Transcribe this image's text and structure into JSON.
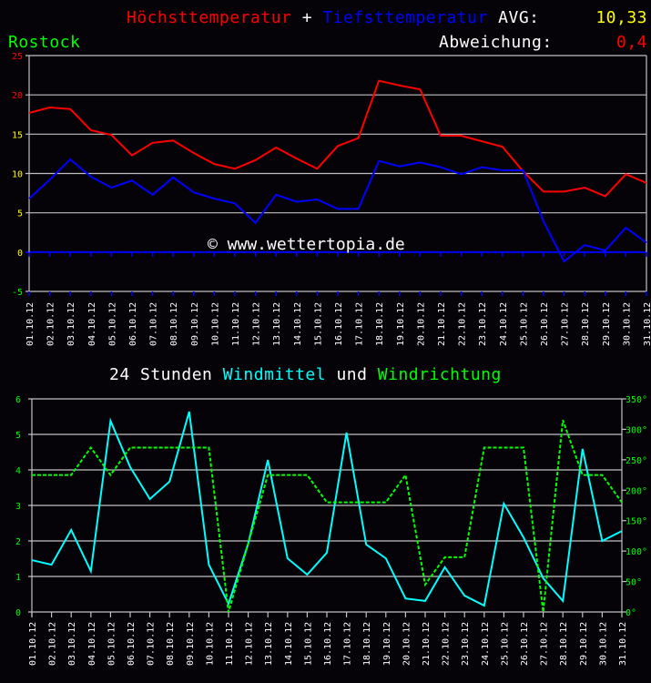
{
  "header": {
    "title_high": "Höchsttemperatur",
    "title_plus": "+",
    "title_low": "Tiefsttemperatur",
    "avg_label": "AVG:",
    "avg_value": "10,33",
    "location": "Rostock",
    "deviation_label": "Abweichung:",
    "deviation_value": "0,4"
  },
  "watermark": "© www.wettertopia.de",
  "wind_title": {
    "prefix": "24 Stunden",
    "series1": "Windmittel",
    "joiner": "und",
    "series2": "Windrichtung"
  },
  "colors": {
    "background": "#050308",
    "grid": "#c0c0c0",
    "high": "#ff0000",
    "low": "#0000ff",
    "wind_speed": "#00ffff",
    "wind_dir": "#00ff00",
    "axis_labels": "#ffffff"
  },
  "chart_data": [
    {
      "type": "line",
      "title": "Höchsttemperatur + Tiefsttemperatur",
      "subtitle": "Rostock",
      "xlabel": "",
      "ylabel": "",
      "ylim": [
        -5,
        25
      ],
      "yticks": [
        25,
        20,
        15,
        10,
        5,
        0,
        -5
      ],
      "ytick_colors": [
        "#ff0000",
        "#ff0000",
        "#ffff00",
        "#ffff00",
        "#ffff00",
        "#ffff00",
        "#00ff00"
      ],
      "grid": true,
      "x": [
        "01.10.12",
        "02.10.12",
        "03.10.12",
        "04.10.12",
        "05.10.12",
        "06.10.12",
        "07.10.12",
        "08.10.12",
        "09.10.12",
        "10.10.12",
        "11.10.12",
        "12.10.12",
        "13.10.12",
        "14.10.12",
        "15.10.12",
        "16.10.12",
        "17.10.12",
        "18.10.12",
        "19.10.12",
        "20.10.12",
        "21.10.12",
        "22.10.12",
        "23.10.12",
        "24.10.12",
        "25.10.12",
        "26.10.12",
        "27.10.12",
        "28.10.12",
        "29.10.12",
        "30.10.12",
        "31.10.12"
      ],
      "series": [
        {
          "name": "Höchsttemperatur",
          "color": "#ff0000",
          "values": [
            17.7,
            18.4,
            18.2,
            15.5,
            14.9,
            12.3,
            13.9,
            14.2,
            12.6,
            11.2,
            10.6,
            11.7,
            13.3,
            11.9,
            10.6,
            13.5,
            14.5,
            21.8,
            21.2,
            20.7,
            14.8,
            14.8,
            14.1,
            13.4,
            10.3,
            7.7,
            7.7,
            8.2,
            7.1,
            9.9,
            8.8
          ]
        },
        {
          "name": "Tiefsttemperatur",
          "color": "#0000ff",
          "values": [
            6.8,
            9.2,
            11.8,
            9.6,
            8.2,
            9.1,
            7.3,
            9.5,
            7.6,
            6.8,
            6.2,
            3.7,
            7.3,
            6.4,
            6.7,
            5.5,
            5.5,
            11.6,
            10.9,
            11.4,
            10.8,
            9.9,
            10.8,
            10.4,
            10.4,
            3.9,
            -1.2,
            0.9,
            0.2,
            3.1,
            1.2
          ]
        }
      ],
      "annotations": [
        "AVG: 10,33",
        "Abweichung: 0,4",
        "© www.wettertopia.de"
      ]
    },
    {
      "type": "line",
      "title": "24 Stunden Windmittel und Windrichtung",
      "xlabel": "",
      "ylabel": "",
      "ylim": [
        0,
        6
      ],
      "yticks": [
        6,
        5,
        4,
        3,
        2,
        1,
        0
      ],
      "y2lim": [
        0,
        350
      ],
      "y2ticks": [
        "350°",
        "300°",
        "250°",
        "200°",
        "150°",
        "100°",
        "50°",
        "0°"
      ],
      "grid": true,
      "x": [
        "01.10.12",
        "02.10.12",
        "03.10.12",
        "04.10.12",
        "05.10.12",
        "06.10.12",
        "07.10.12",
        "08.10.12",
        "09.10.12",
        "10.10.12",
        "11.10.12",
        "12.10.12",
        "13.10.12",
        "14.10.12",
        "15.10.12",
        "16.10.12",
        "17.10.12",
        "18.10.12",
        "19.10.12",
        "20.10.12",
        "21.10.12",
        "22.10.12",
        "23.10.12",
        "24.10.12",
        "25.10.12",
        "26.10.12",
        "27.10.12",
        "28.10.12",
        "29.10.12",
        "30.10.12",
        "31.10.12"
      ],
      "series": [
        {
          "name": "Windmittel",
          "color": "#00ffff",
          "axis": "left",
          "values": [
            1.46,
            1.33,
            2.31,
            1.15,
            5.38,
            4.08,
            3.18,
            3.67,
            5.64,
            1.33,
            0.23,
            1.92,
            4.28,
            1.51,
            1.05,
            1.67,
            5.05,
            1.9,
            1.51,
            0.38,
            0.31,
            1.26,
            0.46,
            0.18,
            3.05,
            2.1,
            0.95,
            0.31,
            4.59,
            2.0,
            2.28
          ]
        },
        {
          "name": "Windrichtung",
          "color": "#00ff00",
          "axis": "right",
          "style": "dashed",
          "values": [
            225,
            225,
            225,
            270,
            225,
            270,
            270,
            270,
            270,
            270,
            0,
            112,
            225,
            225,
            225,
            180,
            180,
            180,
            180,
            225,
            45,
            90,
            90,
            270,
            270,
            270,
            0,
            315,
            225,
            225,
            180
          ]
        }
      ]
    }
  ]
}
